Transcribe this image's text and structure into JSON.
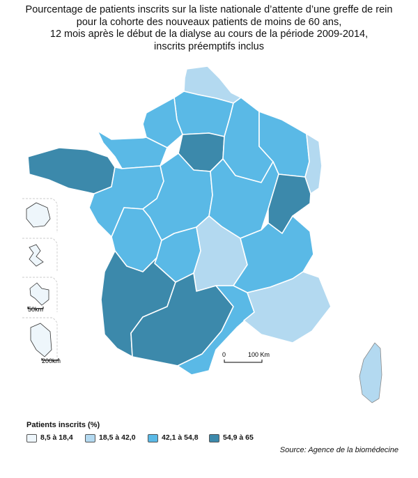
{
  "title_lines": [
    "Pourcentage de patients inscrits sur la liste nationale d’attente d’une greffe de rein",
    "pour la cohorte des nouveaux patients de moins de 60 ans,",
    "12 mois après le début de la dialyse au cours de la période 2009-2014,",
    "inscrits préemptifs inclus"
  ],
  "colors": {
    "class1": "#eef6fb",
    "class2": "#b3d9f0",
    "class3": "#5ab9e6",
    "class4": "#3c89ab"
  },
  "regions": [
    {
      "name": "Nord-Pas-de-Calais",
      "class": 2
    },
    {
      "name": "Picardie",
      "class": 3
    },
    {
      "name": "Haute-Normandie",
      "class": 3
    },
    {
      "name": "Ile-de-France",
      "class": 4
    },
    {
      "name": "Champagne-Ardenne",
      "class": 3
    },
    {
      "name": "Lorraine",
      "class": 3
    },
    {
      "name": "Alsace",
      "class": 2
    },
    {
      "name": "Basse-Normandie",
      "class": 3
    },
    {
      "name": "Bretagne",
      "class": 4
    },
    {
      "name": "Pays de la Loire",
      "class": 3
    },
    {
      "name": "Centre",
      "class": 3
    },
    {
      "name": "Bourgogne",
      "class": 3
    },
    {
      "name": "Franche-Comté",
      "class": 4
    },
    {
      "name": "Poitou-Charentes",
      "class": 3
    },
    {
      "name": "Limousin",
      "class": 3
    },
    {
      "name": "Auvergne",
      "class": 2
    },
    {
      "name": "Rhône-Alpes",
      "class": 3
    },
    {
      "name": "Aquitaine",
      "class": 4
    },
    {
      "name": "Midi-Pyrénées",
      "class": 4
    },
    {
      "name": "Languedoc-Roussillon",
      "class": 3
    },
    {
      "name": "Provence-Alpes-Côte d'Azur",
      "class": 2
    },
    {
      "name": "Corse",
      "class": 2
    },
    {
      "name": "Réunion",
      "class": 1
    },
    {
      "name": "Martinique",
      "class": 1
    },
    {
      "name": "Guadeloupe",
      "class": 1
    },
    {
      "name": "Guyane",
      "class": 1
    }
  ],
  "insets": {
    "scale_small": "50km",
    "scale_large": "200km"
  },
  "scale_bar": {
    "start": "0",
    "end": "100 Km"
  },
  "legend": {
    "title": "Patients inscrits (%)",
    "items": [
      {
        "label": "8,5 à 18,4",
        "class": 1
      },
      {
        "label": "18,5 à 42,0",
        "class": 2
      },
      {
        "label": "42,1 à 54,8",
        "class": 3
      },
      {
        "label": "54,9 à 65",
        "class": 4
      }
    ]
  },
  "source": "Source: Agence de la biomédecine"
}
